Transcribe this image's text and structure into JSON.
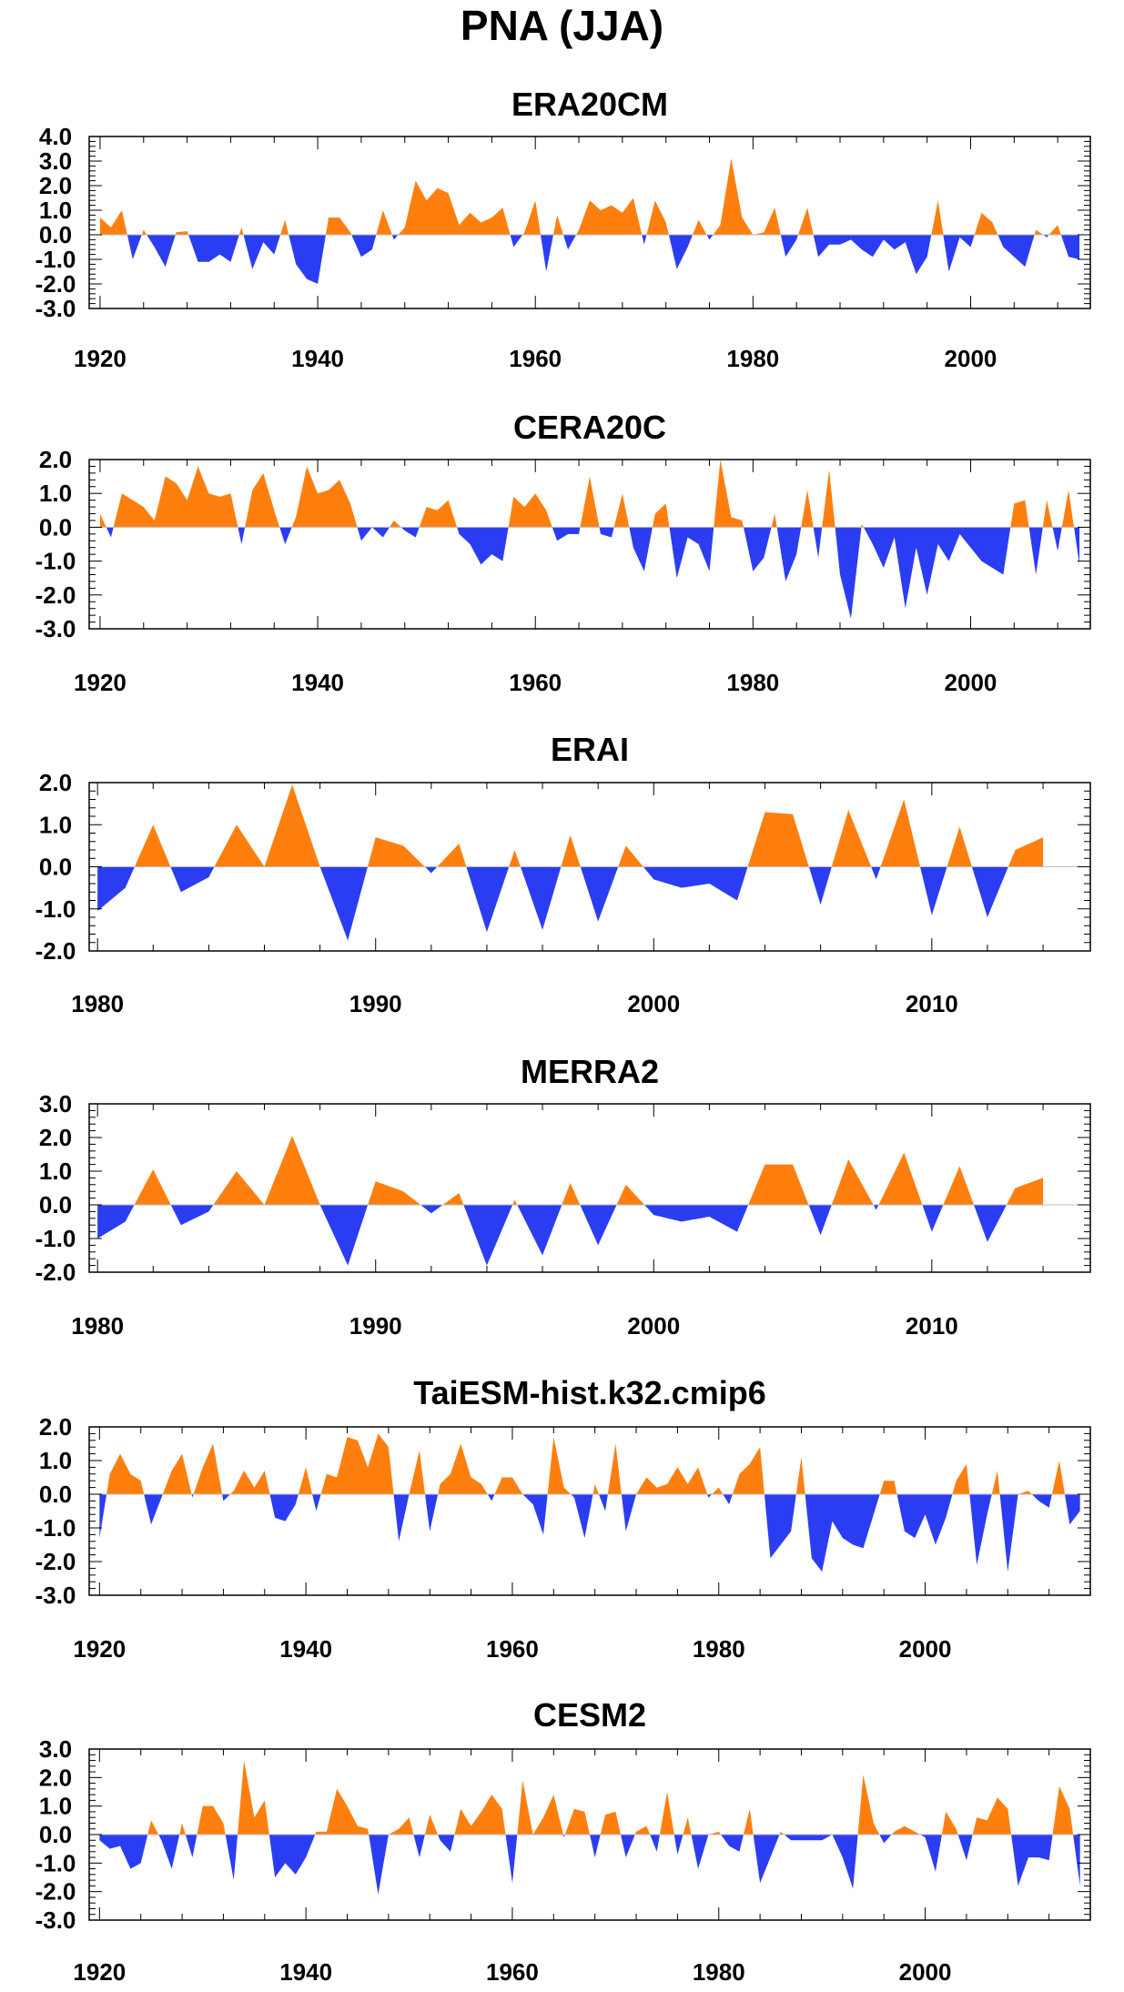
{
  "title": "PNA (JJA)",
  "colors": {
    "positive": "#ff7f0e",
    "negative": "#2b3df2",
    "frame": "#000000"
  },
  "chart_data": [
    {
      "type": "area",
      "title": "ERA20CM",
      "xlabel": "",
      "ylabel": "",
      "xlim": [
        1919,
        2011
      ],
      "ylim": [
        -3.0,
        4.0
      ],
      "yticks": [
        "4.0",
        "3.0",
        "2.0",
        "1.0",
        "0.0",
        "-1.0",
        "-2.0",
        "-3.0"
      ],
      "xticks": [
        "1920",
        "1940",
        "1960",
        "1980",
        "2000"
      ],
      "x": [
        1920,
        1921,
        1922,
        1923,
        1924,
        1925,
        1926,
        1927,
        1928,
        1929,
        1930,
        1931,
        1932,
        1933,
        1934,
        1935,
        1936,
        1937,
        1938,
        1939,
        1940,
        1941,
        1942,
        1943,
        1944,
        1945,
        1946,
        1947,
        1948,
        1949,
        1950,
        1951,
        1952,
        1953,
        1954,
        1955,
        1956,
        1957,
        1958,
        1959,
        1960,
        1961,
        1962,
        1963,
        1964,
        1965,
        1966,
        1967,
        1968,
        1969,
        1970,
        1971,
        1972,
        1973,
        1974,
        1975,
        1976,
        1977,
        1978,
        1979,
        1980,
        1981,
        1982,
        1983,
        1984,
        1985,
        1986,
        1987,
        1988,
        1989,
        1990,
        1991,
        1992,
        1993,
        1994,
        1995,
        1996,
        1997,
        1998,
        1999,
        2000,
        2001,
        2002,
        2003,
        2004,
        2005,
        2006,
        2007,
        2008,
        2009,
        2010
      ],
      "y": [
        0.7,
        0.3,
        1.0,
        -1.0,
        0.2,
        -0.5,
        -1.3,
        0.1,
        0.15,
        -1.1,
        -1.1,
        -0.8,
        -1.1,
        0.3,
        -1.4,
        -0.3,
        -0.8,
        0.6,
        -1.2,
        -1.8,
        -2.0,
        0.7,
        0.7,
        0.1,
        -0.9,
        -0.6,
        1.0,
        -0.2,
        0.3,
        2.2,
        1.4,
        1.9,
        1.7,
        0.4,
        0.9,
        0.5,
        0.7,
        1.1,
        -0.5,
        0.1,
        1.4,
        -1.5,
        0.8,
        -0.6,
        0.2,
        1.4,
        1.0,
        1.2,
        0.9,
        1.5,
        -0.4,
        1.4,
        0.5,
        -1.4,
        -0.5,
        0.6,
        -0.2,
        0.4,
        3.1,
        0.7,
        0.0,
        0.1,
        1.1,
        -0.9,
        -0.2,
        1.1,
        -0.9,
        -0.4,
        -0.4,
        -0.2,
        -0.6,
        -0.9,
        -0.2,
        -0.6,
        -0.3,
        -1.6,
        -0.9,
        1.4,
        -1.5,
        -0.1,
        -0.5,
        0.9,
        0.5,
        -0.5,
        -0.9,
        -1.3,
        0.2,
        -0.1,
        0.4,
        -0.9,
        -1.0
      ]
    },
    {
      "type": "area",
      "title": "CERA20C",
      "xlabel": "",
      "ylabel": "",
      "xlim": [
        1919,
        2011
      ],
      "ylim": [
        -3.0,
        2.0
      ],
      "yticks": [
        "2.0",
        "1.0",
        "0.0",
        "-1.0",
        "-2.0",
        "-3.0"
      ],
      "xticks": [
        "1920",
        "1940",
        "1960",
        "1980",
        "2000"
      ],
      "x": [
        1920,
        1921,
        1922,
        1923,
        1924,
        1925,
        1926,
        1927,
        1928,
        1929,
        1930,
        1931,
        1932,
        1933,
        1934,
        1935,
        1936,
        1937,
        1938,
        1939,
        1940,
        1941,
        1942,
        1943,
        1944,
        1945,
        1946,
        1947,
        1948,
        1949,
        1950,
        1951,
        1952,
        1953,
        1954,
        1955,
        1956,
        1957,
        1958,
        1959,
        1960,
        1961,
        1962,
        1963,
        1964,
        1965,
        1966,
        1967,
        1968,
        1969,
        1970,
        1971,
        1972,
        1973,
        1974,
        1975,
        1976,
        1977,
        1978,
        1979,
        1980,
        1981,
        1982,
        1983,
        1984,
        1985,
        1986,
        1987,
        1988,
        1989,
        1990,
        1991,
        1992,
        1993,
        1994,
        1995,
        1996,
        1997,
        1998,
        1999,
        2000,
        2001,
        2002,
        2003,
        2004,
        2005,
        2006,
        2007,
        2008,
        2009,
        2010
      ],
      "y": [
        0.4,
        -0.3,
        1.0,
        0.8,
        0.6,
        0.2,
        1.5,
        1.3,
        0.8,
        1.8,
        1.0,
        0.9,
        1.0,
        -0.5,
        1.1,
        1.6,
        0.5,
        -0.5,
        0.3,
        1.8,
        1.0,
        1.1,
        1.4,
        0.7,
        -0.4,
        0.0,
        -0.3,
        0.2,
        -0.1,
        -0.3,
        0.6,
        0.5,
        0.8,
        -0.2,
        -0.5,
        -1.1,
        -0.8,
        -1.0,
        0.9,
        0.6,
        1.0,
        0.5,
        -0.4,
        -0.2,
        -0.2,
        1.5,
        -0.2,
        -0.3,
        1.0,
        -0.6,
        -1.3,
        0.4,
        0.7,
        -1.5,
        -0.3,
        -0.5,
        -1.3,
        2.0,
        0.3,
        0.2,
        -1.3,
        -0.9,
        0.4,
        -1.6,
        -0.8,
        1.1,
        -0.9,
        1.7,
        -1.4,
        -2.7,
        0.1,
        -0.5,
        -1.2,
        -0.3,
        -2.4,
        -0.6,
        -2.0,
        -0.5,
        -1.0,
        -0.2,
        -0.6,
        -1.0,
        -1.2,
        -1.4,
        0.7,
        0.8,
        -1.4,
        0.8,
        -0.7,
        1.1,
        -1.1
      ]
    },
    {
      "type": "area",
      "title": "ERAI",
      "xlabel": "",
      "ylabel": "",
      "xlim": [
        1979.7,
        2015.7
      ],
      "ylim": [
        -2.0,
        2.0
      ],
      "yticks": [
        "2.0",
        "1.0",
        "0.0",
        "-1.0",
        "-2.0"
      ],
      "xticks": [
        "1980",
        "1990",
        "2000",
        "2010"
      ],
      "x": [
        1980,
        1981,
        1982,
        1983,
        1984,
        1985,
        1986,
        1987,
        1988,
        1989,
        1990,
        1991,
        1992,
        1993,
        1994,
        1995,
        1996,
        1997,
        1998,
        1999,
        2000,
        2001,
        2002,
        2003,
        2004,
        2005,
        2006,
        2007,
        2008,
        2009,
        2010,
        2011,
        2012,
        2013,
        2014
      ],
      "y": [
        -1.05,
        -0.5,
        1.0,
        -0.6,
        -0.25,
        1.0,
        0.0,
        1.95,
        0.0,
        -1.75,
        0.7,
        0.5,
        -0.15,
        0.55,
        -1.55,
        0.4,
        -1.5,
        0.75,
        -1.3,
        0.5,
        -0.3,
        -0.5,
        -0.4,
        -0.8,
        1.3,
        1.25,
        -0.9,
        1.35,
        -0.3,
        1.6,
        -1.15,
        0.95,
        -1.2,
        0.4,
        0.7
      ]
    },
    {
      "type": "area",
      "title": "MERRA2",
      "xlabel": "",
      "ylabel": "",
      "xlim": [
        1979.7,
        2015.7
      ],
      "ylim": [
        -2.0,
        3.0
      ],
      "yticks": [
        "3.0",
        "2.0",
        "1.0",
        "0.0",
        "-1.0",
        "-2.0"
      ],
      "xticks": [
        "1980",
        "1990",
        "2000",
        "2010"
      ],
      "x": [
        1980,
        1981,
        1982,
        1983,
        1984,
        1985,
        1986,
        1987,
        1988,
        1989,
        1990,
        1991,
        1992,
        1993,
        1994,
        1995,
        1996,
        1997,
        1998,
        1999,
        2000,
        2001,
        2002,
        2003,
        2004,
        2005,
        2006,
        2007,
        2008,
        2009,
        2010,
        2011,
        2012,
        2013,
        2014
      ],
      "y": [
        -1.0,
        -0.5,
        1.05,
        -0.6,
        -0.2,
        1.0,
        0.0,
        2.05,
        0.0,
        -1.8,
        0.7,
        0.4,
        -0.25,
        0.35,
        -1.8,
        0.15,
        -1.5,
        0.65,
        -1.2,
        0.6,
        -0.3,
        -0.5,
        -0.35,
        -0.8,
        1.2,
        1.2,
        -0.9,
        1.35,
        -0.15,
        1.55,
        -0.8,
        1.15,
        -1.1,
        0.5,
        0.8
      ]
    },
    {
      "type": "area",
      "title": "TaiESM-hist.k32.cmip6",
      "xlabel": "",
      "ylabel": "",
      "xlim": [
        1919,
        2016
      ],
      "ylim": [
        -3.0,
        2.0
      ],
      "yticks": [
        "2.0",
        "1.0",
        "0.0",
        "-1.0",
        "-2.0",
        "-3.0"
      ],
      "xticks": [
        "1920",
        "1940",
        "1960",
        "1980",
        "2000"
      ],
      "x": [
        1920,
        1921,
        1922,
        1923,
        1924,
        1925,
        1926,
        1927,
        1928,
        1929,
        1930,
        1931,
        1932,
        1933,
        1934,
        1935,
        1936,
        1937,
        1938,
        1939,
        1940,
        1941,
        1942,
        1943,
        1944,
        1945,
        1946,
        1947,
        1948,
        1949,
        1950,
        1951,
        1952,
        1953,
        1954,
        1955,
        1956,
        1957,
        1958,
        1959,
        1960,
        1961,
        1962,
        1963,
        1964,
        1965,
        1966,
        1967,
        1968,
        1969,
        1970,
        1971,
        1972,
        1973,
        1974,
        1975,
        1976,
        1977,
        1978,
        1979,
        1980,
        1981,
        1982,
        1983,
        1984,
        1985,
        1986,
        1987,
        1988,
        1989,
        1990,
        1991,
        1992,
        1993,
        1994,
        1995,
        1996,
        1997,
        1998,
        1999,
        2000,
        2001,
        2002,
        2003,
        2004,
        2005,
        2006,
        2007,
        2008,
        2009,
        2010,
        2011,
        2012,
        2013,
        2014,
        2015
      ],
      "y": [
        -1.3,
        0.6,
        1.2,
        0.6,
        0.4,
        -0.9,
        -0.1,
        0.7,
        1.2,
        -0.1,
        0.8,
        1.5,
        -0.2,
        0.1,
        0.7,
        0.2,
        0.7,
        -0.7,
        -0.8,
        -0.3,
        0.8,
        -0.5,
        0.6,
        0.5,
        1.7,
        1.6,
        0.8,
        1.8,
        1.4,
        -1.4,
        0.0,
        1.3,
        -1.1,
        0.3,
        0.6,
        1.5,
        0.5,
        0.3,
        -0.2,
        0.5,
        0.5,
        0.0,
        -0.3,
        -1.2,
        1.7,
        0.2,
        -0.1,
        -1.3,
        0.3,
        -0.5,
        1.5,
        -1.1,
        0.0,
        0.5,
        0.2,
        0.3,
        0.8,
        0.3,
        0.8,
        -0.1,
        0.2,
        -0.3,
        0.6,
        0.9,
        1.4,
        -1.9,
        -1.5,
        -1.1,
        1.1,
        -1.9,
        -2.3,
        -0.8,
        -1.3,
        -1.5,
        -1.6,
        -0.6,
        0.4,
        0.4,
        -1.1,
        -1.3,
        -0.6,
        -1.5,
        -0.7,
        0.4,
        0.9,
        -2.1,
        -0.6,
        0.7,
        -2.3,
        0.0,
        0.1,
        -0.2,
        -0.4,
        1.0,
        -0.9,
        -0.5
      ]
    },
    {
      "type": "area",
      "title": "CESM2",
      "xlabel": "",
      "ylabel": "",
      "xlim": [
        1919,
        2016
      ],
      "ylim": [
        -3.0,
        3.0
      ],
      "yticks": [
        "3.0",
        "2.0",
        "1.0",
        "0.0",
        "-1.0",
        "-2.0",
        "-3.0"
      ],
      "xticks": [
        "1920",
        "1940",
        "1960",
        "1980",
        "2000"
      ],
      "x": [
        1920,
        1921,
        1922,
        1923,
        1924,
        1925,
        1926,
        1927,
        1928,
        1929,
        1930,
        1931,
        1932,
        1933,
        1934,
        1935,
        1936,
        1937,
        1938,
        1939,
        1940,
        1941,
        1942,
        1943,
        1944,
        1945,
        1946,
        1947,
        1948,
        1949,
        1950,
        1951,
        1952,
        1953,
        1954,
        1955,
        1956,
        1957,
        1958,
        1959,
        1960,
        1961,
        1962,
        1963,
        1964,
        1965,
        1966,
        1967,
        1968,
        1969,
        1970,
        1971,
        1972,
        1973,
        1974,
        1975,
        1976,
        1977,
        1978,
        1979,
        1980,
        1981,
        1982,
        1983,
        1984,
        1985,
        1986,
        1987,
        1988,
        1989,
        1990,
        1991,
        1992,
        1993,
        1994,
        1995,
        1996,
        1997,
        1998,
        1999,
        2000,
        2001,
        2002,
        2003,
        2004,
        2005,
        2006,
        2007,
        2008,
        2009,
        2010,
        2011,
        2012,
        2013,
        2014,
        2015
      ],
      "y": [
        -0.2,
        -0.5,
        -0.4,
        -1.2,
        -1.0,
        0.5,
        -0.2,
        -1.2,
        0.4,
        -0.8,
        1.0,
        1.0,
        0.4,
        -1.6,
        2.6,
        0.6,
        1.2,
        -1.5,
        -1.0,
        -1.4,
        -0.8,
        0.1,
        0.1,
        1.6,
        1.0,
        0.3,
        0.2,
        -2.1,
        0.0,
        0.2,
        0.6,
        -0.8,
        0.7,
        -0.2,
        -0.6,
        0.9,
        0.3,
        0.8,
        1.4,
        0.9,
        -1.7,
        1.9,
        0.0,
        0.6,
        1.4,
        -0.1,
        0.9,
        0.8,
        -0.8,
        0.7,
        0.8,
        -0.8,
        0.1,
        0.3,
        -0.6,
        1.5,
        -0.7,
        0.6,
        -1.2,
        0.0,
        0.1,
        -0.4,
        -0.6,
        0.9,
        -1.7,
        -0.8,
        0.1,
        -0.2,
        -0.2,
        -0.2,
        -0.2,
        0.0,
        -0.8,
        -1.9,
        2.1,
        0.4,
        -0.3,
        0.1,
        0.3,
        0.1,
        -0.1,
        -1.3,
        0.8,
        0.2,
        -0.9,
        0.6,
        0.5,
        1.3,
        0.9,
        -1.8,
        -0.8,
        -0.8,
        -0.9,
        1.7,
        0.9,
        -1.8
      ]
    }
  ]
}
